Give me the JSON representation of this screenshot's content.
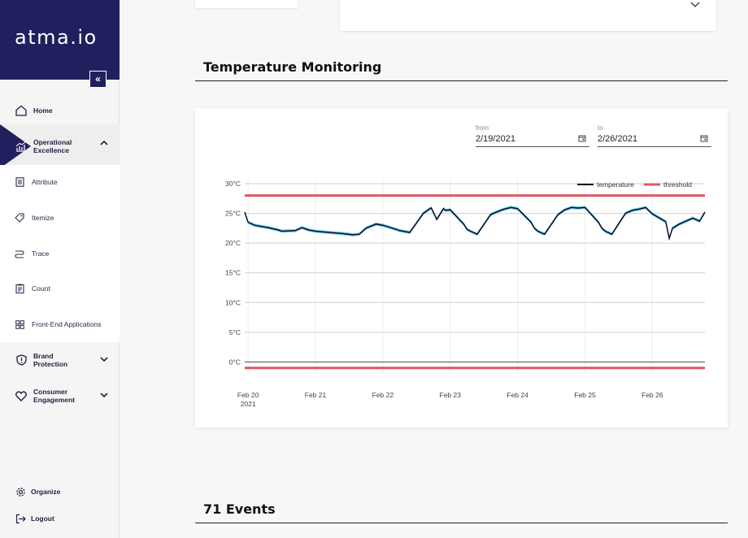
{
  "sidebar": {
    "brand": "atma.io",
    "collapse_icon": "double-chevron-left-icon",
    "items": [
      {
        "label": "Home",
        "icon": "home-icon"
      },
      {
        "label": "Operational Excellence",
        "icon": "chart-icon"
      },
      {
        "label": "Brand Protection",
        "icon": "shield-icon"
      },
      {
        "label": "Consumer Engagement",
        "icon": "heart-icon"
      }
    ],
    "subitems": [
      {
        "label": "Attribute",
        "icon": "document-icon"
      },
      {
        "label": "Itemize",
        "icon": "tag-icon"
      },
      {
        "label": "Trace",
        "icon": "route-icon"
      },
      {
        "label": "Count",
        "icon": "clipboard-icon"
      },
      {
        "label": "Front-End Applications",
        "icon": "grid-icon"
      }
    ],
    "bottom": [
      {
        "label": "Organize",
        "icon": "gear-icon"
      },
      {
        "label": "Logout",
        "icon": "logout-icon"
      }
    ]
  },
  "main": {
    "section_title": "Temperature Monitoring",
    "events_title": "71 Events",
    "from_label": "from",
    "from_value": "2/19/2021",
    "to_label": "to",
    "to_value": "2/26/2021"
  },
  "colors": {
    "brand": "#20205e",
    "temperature": "#0b0b1f",
    "band": "#5bc8f0",
    "threshold": "#e0585f"
  },
  "chart_data": {
    "type": "line",
    "title": "",
    "xlabel": "",
    "ylabel": "",
    "ylim": [
      -2,
      30
    ],
    "yticks": [
      "0°C",
      "5°C",
      "10°C",
      "15°C",
      "20°C",
      "25°C",
      "30°C"
    ],
    "ytick_values": [
      0,
      5,
      10,
      15,
      20,
      25,
      30
    ],
    "xticks": [
      "Feb 20",
      "Feb 21",
      "Feb 22",
      "Feb 23",
      "Feb 24",
      "Feb 25",
      "Feb 26"
    ],
    "xtick_year": "2021",
    "xtick_days": [
      20,
      21,
      22,
      23,
      24,
      25,
      26
    ],
    "xlim": [
      19.95,
      26.78
    ],
    "legend_position": "top-right",
    "series": [
      {
        "name": "temperature",
        "x": [
          19.95,
          20.0,
          20.1,
          20.3,
          20.45,
          20.5,
          20.7,
          20.8,
          20.9,
          21.0,
          21.2,
          21.4,
          21.55,
          21.65,
          21.75,
          21.9,
          22.0,
          22.2,
          22.25,
          22.3,
          22.4,
          22.6,
          22.7,
          22.72,
          22.8,
          22.9,
          22.93,
          23.0,
          23.2,
          23.25,
          23.3,
          23.4,
          23.6,
          23.7,
          23.8,
          23.9,
          24.0,
          24.2,
          24.25,
          24.3,
          24.4,
          24.6,
          24.7,
          24.8,
          24.9,
          25.0,
          25.2,
          25.25,
          25.3,
          25.4,
          25.6,
          25.7,
          25.8,
          25.9,
          26.0,
          26.2,
          26.25,
          26.3,
          26.4,
          26.6,
          26.7,
          26.78
        ],
        "values": [
          25.2,
          23.5,
          23.0,
          22.6,
          22.2,
          22.0,
          22.1,
          22.6,
          22.2,
          22.0,
          21.8,
          21.6,
          21.4,
          21.5,
          22.5,
          23.2,
          23.0,
          22.3,
          22.1,
          22.0,
          21.8,
          25.0,
          25.8,
          25.9,
          24.0,
          25.8,
          25.5,
          25.6,
          23.2,
          22.3,
          22.0,
          21.5,
          24.8,
          25.3,
          25.7,
          26.0,
          25.8,
          23.5,
          22.5,
          22.0,
          21.5,
          24.8,
          25.6,
          26.0,
          25.9,
          26.0,
          23.5,
          22.5,
          22.0,
          21.5,
          25.0,
          25.5,
          25.7,
          26.0,
          24.9,
          23.6,
          20.8,
          22.5,
          23.2,
          24.2,
          23.7,
          25.2
        ]
      },
      {
        "name": "threshold",
        "upper": 28,
        "lower": -1
      }
    ]
  }
}
